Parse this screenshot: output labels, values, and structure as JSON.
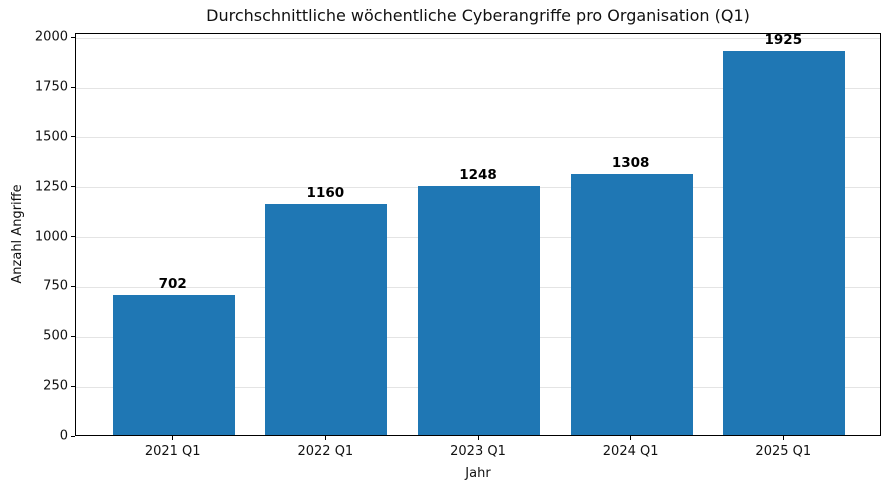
{
  "chart_data": {
    "type": "bar",
    "title": "Durchschnittliche wöchentliche Cyberangriffe pro Organisation (Q1)",
    "categories": [
      "2021 Q1",
      "2022 Q1",
      "2023 Q1",
      "2024 Q1",
      "2025 Q1"
    ],
    "values": [
      702,
      1160,
      1248,
      1308,
      1925
    ],
    "bar_labels": [
      "702",
      "1160",
      "1248",
      "1308",
      "1925"
    ],
    "xlabel": "Jahr",
    "ylabel": "Anzahl Angriffe",
    "ylim": [
      0,
      2021
    ],
    "yticks": [
      0,
      250,
      500,
      750,
      1000,
      1250,
      1500,
      1750,
      2000
    ],
    "grid": "horizontal",
    "legend": "none",
    "colors": {
      "bar": "#1f77b4",
      "gridline": "#e4e4e4",
      "axis": "#000000",
      "text": "#111111",
      "bar_label": "#000000",
      "background": "#ffffff"
    }
  }
}
